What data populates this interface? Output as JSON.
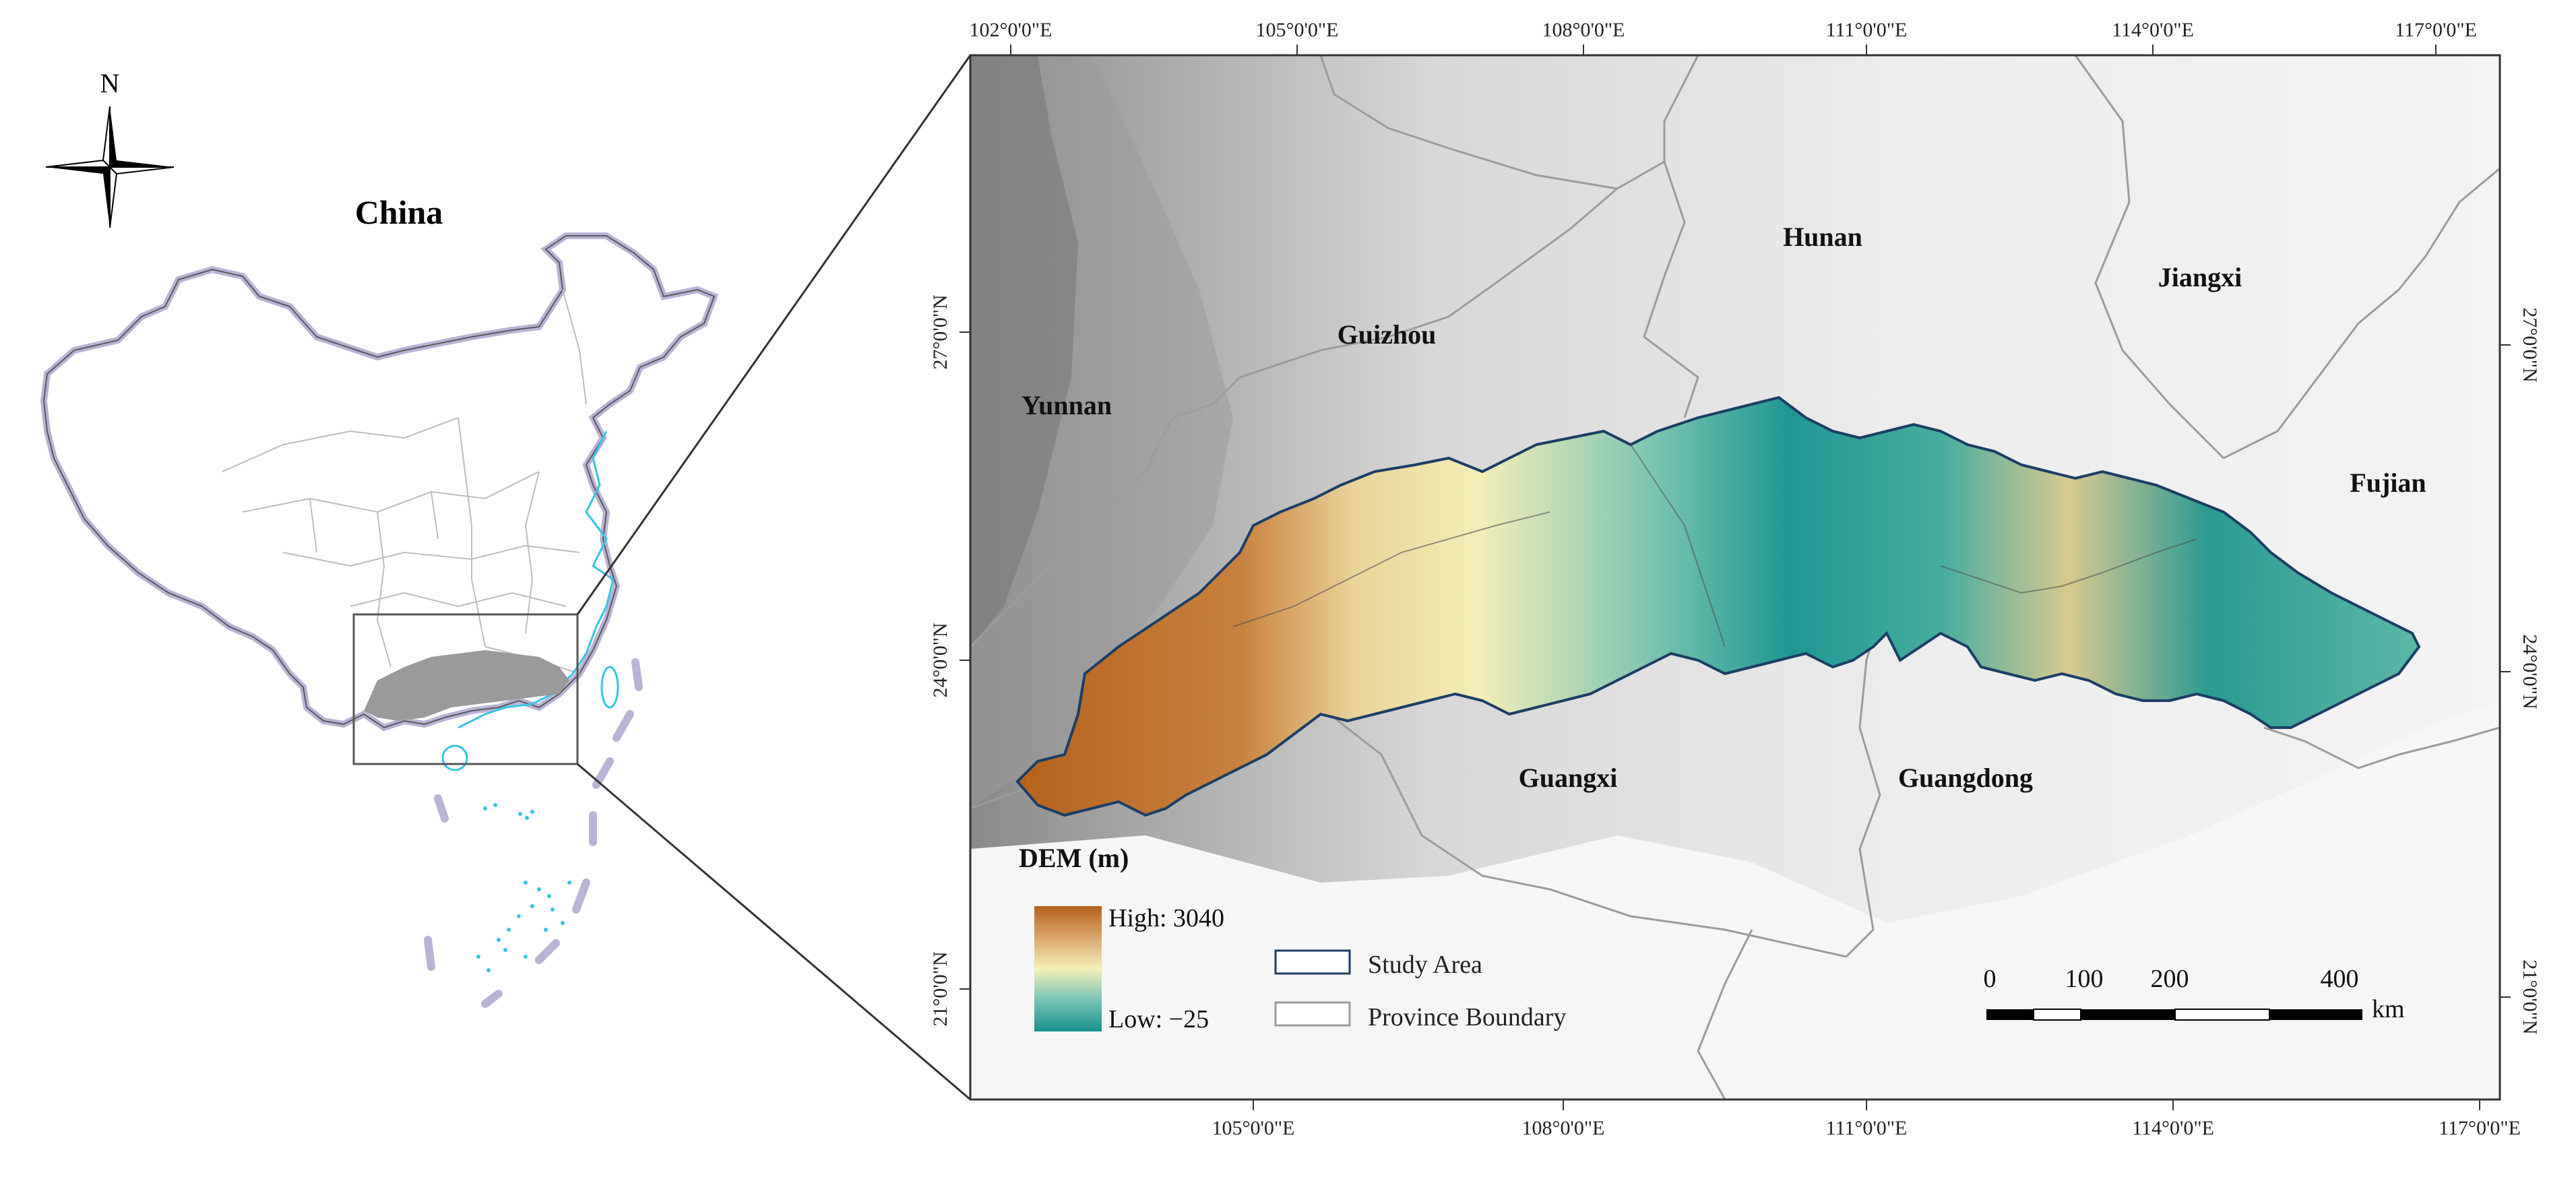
{
  "overview": {
    "country_label": "China",
    "north_label": "N"
  },
  "map": {
    "top_ticks": [
      "102°0'0\"E",
      "105°0'0\"E",
      "108°0'0\"E",
      "111°0'0\"E",
      "114°0'0\"E",
      "117°0'0\"E"
    ],
    "bottom_ticks": [
      "105°0'0\"E",
      "108°0'0\"E",
      "111°0'0\"E",
      "114°0'0\"E",
      "117°0'0\"E"
    ],
    "left_ticks": [
      "27°0'0\"N",
      "24°0'0\"N",
      "21°0'0\"N"
    ],
    "right_ticks": [
      "27°0'0\"N",
      "24°0'0\"N",
      "21°0'0\"N"
    ],
    "provinces": [
      "Yunnan",
      "Guizhou",
      "Hunan",
      "Jiangxi",
      "Fujian",
      "Guangxi",
      "Guangdong"
    ]
  },
  "legend": {
    "title": "DEM (m)",
    "high": "High: 3040",
    "low": "Low: −25",
    "study_area": "Study Area",
    "province_boundary": "Province Boundary",
    "colors": {
      "high": "#b5621c",
      "mid_high": "#d9a56a",
      "mid": "#f5f0b8",
      "mid_low": "#76c3b5",
      "low": "#17908f"
    }
  },
  "scalebar": {
    "labels": [
      "0",
      "100",
      "200",
      "400"
    ],
    "unit": "km"
  }
}
